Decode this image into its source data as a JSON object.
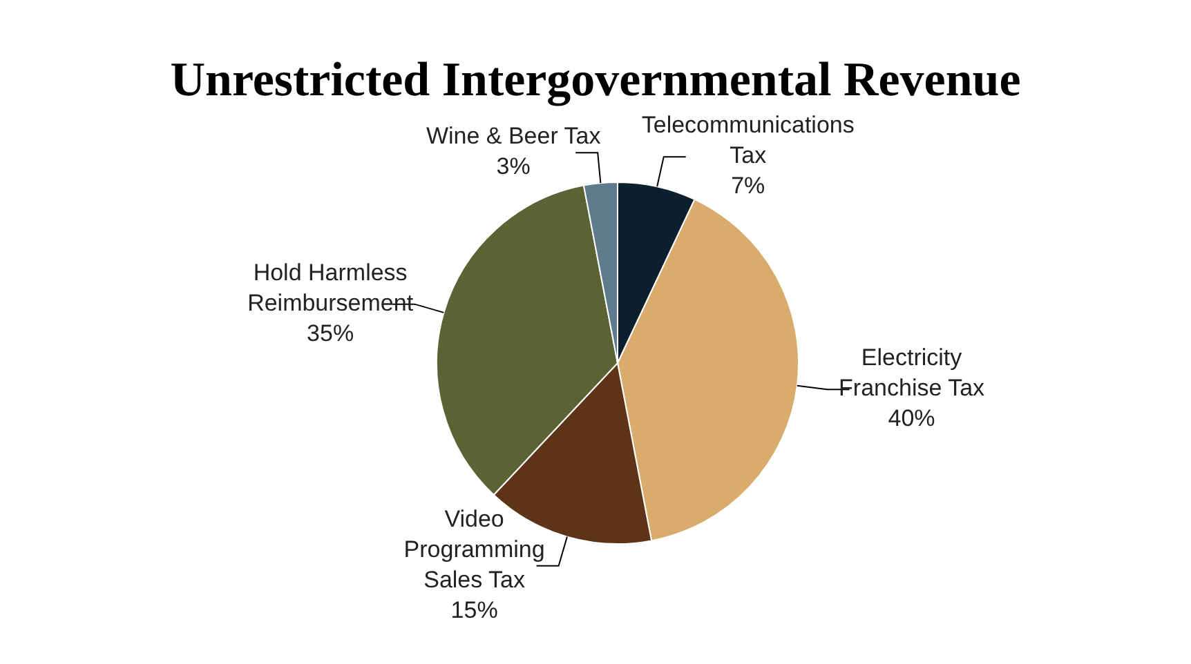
{
  "chart_data": {
    "type": "pie",
    "title": "Unrestricted Intergovernmental Revenue",
    "categories": [
      "Telecommunications Tax",
      "Electricity Franchise Tax",
      "Video Programming Sales Tax",
      "Hold Harmless Reimbursement",
      "Wine & Beer Tax"
    ],
    "values": [
      7,
      40,
      15,
      35,
      3
    ],
    "value_labels": [
      "7%",
      "40%",
      "15%",
      "35%",
      "3%"
    ],
    "colors": [
      "#0b1f2c",
      "#d9ab6c",
      "#5e3418",
      "#5b6335",
      "#5e7b8e"
    ],
    "legend": false
  }
}
